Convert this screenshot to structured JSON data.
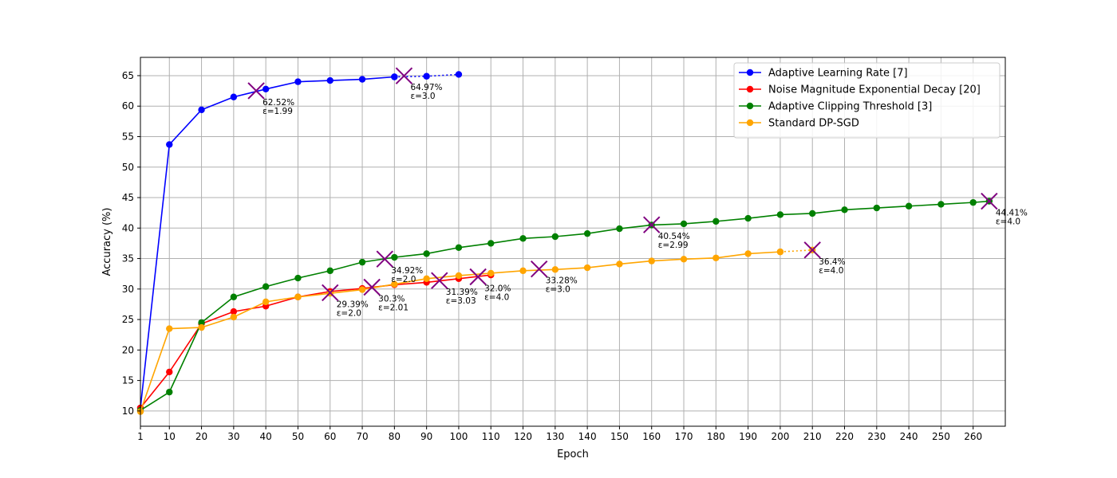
{
  "chart_data": {
    "type": "line",
    "xlabel": "Epoch",
    "ylabel": "Accuracy (%)",
    "xlim": [
      1,
      270
    ],
    "ylim": [
      7.5,
      68
    ],
    "xticks": [
      1,
      10,
      20,
      30,
      40,
      50,
      60,
      70,
      80,
      90,
      100,
      110,
      120,
      130,
      140,
      150,
      160,
      170,
      180,
      190,
      200,
      210,
      220,
      230,
      240,
      250,
      260
    ],
    "yticks": [
      10,
      15,
      20,
      25,
      30,
      35,
      40,
      45,
      50,
      55,
      60,
      65
    ],
    "grid": true,
    "legend_position": "top-right",
    "series": [
      {
        "name": "Adaptive Learning Rate [7]",
        "color": "#0000ff",
        "x": [
          1,
          10,
          20,
          30,
          40,
          50,
          60,
          70,
          80
        ],
        "y": [
          10.5,
          53.7,
          59.4,
          61.5,
          62.8,
          64.0,
          64.2,
          64.4,
          64.8
        ],
        "dotted_x": [
          80,
          90,
          100
        ],
        "dotted_y": [
          64.8,
          64.9,
          65.2
        ],
        "markers": [
          {
            "x": 37,
            "y": 62.52,
            "label": "62.52%",
            "eps": "ε=1.99"
          },
          {
            "x": 83,
            "y": 64.97,
            "label": "64.97%",
            "eps": "ε=3.0"
          }
        ]
      },
      {
        "name": "Noise Magnitude Exponential Decay [20]",
        "color": "#ff0000",
        "x": [
          1,
          10,
          20,
          30,
          40,
          50,
          60,
          70,
          80,
          90,
          100,
          110
        ],
        "y": [
          10.5,
          16.4,
          24.3,
          26.3,
          27.2,
          28.7,
          29.6,
          30.1,
          30.7,
          31.1,
          31.7,
          32.3
        ],
        "dotted_x": [],
        "dotted_y": [],
        "markers": [
          {
            "x": 73,
            "y": 30.3,
            "label": "30.3%",
            "eps": "ε=2.01"
          },
          {
            "x": 94,
            "y": 31.39,
            "label": "31.39%",
            "eps": "ε=3.03"
          },
          {
            "x": 106,
            "y": 32.0,
            "label": "32.0%",
            "eps": "ε=4.0"
          }
        ]
      },
      {
        "name": "Adaptive Clipping Threshold [3]",
        "color": "#008000",
        "x": [
          1,
          10,
          20,
          30,
          40,
          50,
          60,
          70,
          80,
          90,
          100,
          110,
          120,
          130,
          140,
          150,
          160,
          170,
          180,
          190,
          200,
          210,
          220,
          230,
          240,
          250,
          260,
          265
        ],
        "y": [
          10.1,
          13.1,
          24.5,
          28.7,
          30.4,
          31.8,
          33.0,
          34.4,
          35.2,
          35.8,
          36.8,
          37.5,
          38.3,
          38.6,
          39.1,
          39.9,
          40.5,
          40.7,
          41.1,
          41.6,
          42.2,
          42.4,
          43.0,
          43.3,
          43.6,
          43.9,
          44.2,
          44.41
        ],
        "dotted_x": [],
        "dotted_y": [],
        "markers": [
          {
            "x": 77,
            "y": 34.92,
            "label": "34.92%",
            "eps": "ε=2.0"
          },
          {
            "x": 160,
            "y": 40.54,
            "label": "40.54%",
            "eps": "ε=2.99"
          },
          {
            "x": 265,
            "y": 44.41,
            "label": "44.41%",
            "eps": "ε=4.0"
          }
        ]
      },
      {
        "name": "Standard DP-SGD",
        "color": "#ffa500",
        "x": [
          1,
          10,
          20,
          30,
          40,
          50,
          60,
          70,
          80,
          90,
          100,
          110,
          120,
          130,
          140,
          150,
          160,
          170,
          180,
          190,
          200
        ],
        "y": [
          9.9,
          23.5,
          23.7,
          25.4,
          27.9,
          28.7,
          29.3,
          29.9,
          30.8,
          31.7,
          32.2,
          32.6,
          33.0,
          33.2,
          33.5,
          34.1,
          34.6,
          34.9,
          35.1,
          35.8,
          36.1
        ],
        "dotted_x": [
          200,
          210
        ],
        "dotted_y": [
          36.1,
          36.4
        ],
        "markers": [
          {
            "x": 60,
            "y": 29.39,
            "label": "29.39%",
            "eps": "ε=2.0"
          },
          {
            "x": 125,
            "y": 33.28,
            "label": "33.28%",
            "eps": "ε=3.0"
          },
          {
            "x": 210,
            "y": 36.4,
            "label": "36.4%",
            "eps": "ε=4.0"
          }
        ]
      }
    ]
  }
}
